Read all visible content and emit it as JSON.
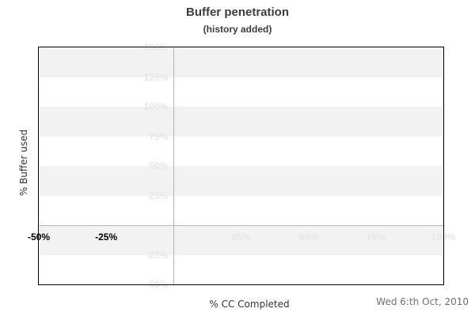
{
  "footer": {
    "date": "Wed 6:th Oct, 2010"
  },
  "chart_data": {
    "type": "line",
    "title": "Buffer penetration",
    "subtitle": "(history added)",
    "xlabel": "% CC Completed",
    "ylabel": "% Buffer used",
    "xlim": [
      -50,
      100
    ],
    "ylim": [
      -50,
      150
    ],
    "band_step": 25,
    "grid": "alternating-horizontal-bands",
    "zero_lines": true,
    "legend_shown": false,
    "series": [],
    "x_ticks": [
      {
        "label": "-50%",
        "value": -50,
        "style": "dark"
      },
      {
        "label": "-25%",
        "value": -25,
        "style": "dark"
      },
      {
        "label": "25%",
        "value": 25,
        "style": "light"
      },
      {
        "label": "50%",
        "value": 50,
        "style": "light"
      },
      {
        "label": "75%",
        "value": 75,
        "style": "light"
      },
      {
        "label": "100%",
        "value": 100,
        "style": "light"
      }
    ],
    "y_ticks": [
      {
        "label": "150%",
        "value": 150,
        "style": "light"
      },
      {
        "label": "125%",
        "value": 125,
        "style": "light"
      },
      {
        "label": "100%",
        "value": 100,
        "style": "light"
      },
      {
        "label": "75%",
        "value": 75,
        "style": "light"
      },
      {
        "label": "50%",
        "value": 50,
        "style": "light"
      },
      {
        "label": "25%",
        "value": 25,
        "style": "light"
      },
      {
        "label": "-25%",
        "value": -25,
        "style": "light"
      },
      {
        "label": "-50%",
        "value": -50,
        "style": "light"
      }
    ],
    "colors": {
      "band_fill": "#f2f2f2",
      "plot_background": "#ffffff",
      "plot_border": "#000000",
      "zero_line": "#b4b4b4",
      "tick_light": "#e6e6e6",
      "tick_dark": "#000000",
      "title": "#3c3c3c",
      "axis_title": "#333333",
      "date": "#707070"
    }
  }
}
